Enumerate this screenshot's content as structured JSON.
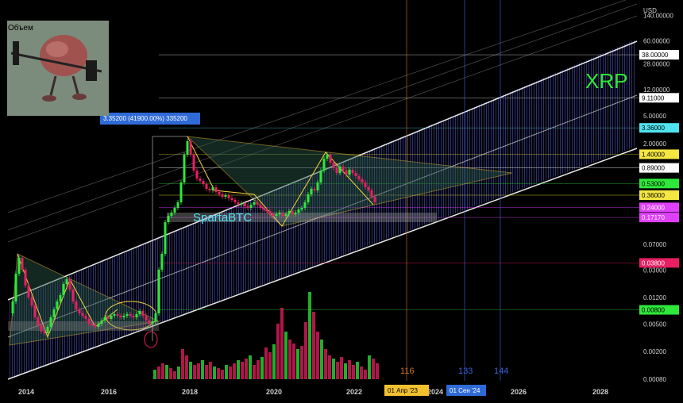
{
  "chart_data": {
    "type": "candlestick",
    "symbol_label": "XRP",
    "volume_label": "Объем",
    "watermark": "SpartaBTC",
    "y_unit": "USD",
    "y_scale": "log",
    "ylim": [
      0.0008,
      200
    ],
    "x_years": [
      "2014",
      "2016",
      "2018",
      "2020",
      "2022",
      "2024",
      "2026",
      "2028"
    ],
    "price_scale_labels": [
      "140.00000",
      "60.00000",
      "28.00000",
      "12.00000",
      "5.00000",
      "2.00000",
      "0.07000",
      "0.03000",
      "0.01200",
      "0.00500",
      "0.00200",
      "0.00080"
    ],
    "price_tags": [
      {
        "value": "38.00000",
        "bg": "#ffffff",
        "fg": "#000000"
      },
      {
        "value": "9.11000",
        "bg": "#ffffff",
        "fg": "#000000"
      },
      {
        "value": "3.36000",
        "bg": "#4fe3ef",
        "fg": "#000000"
      },
      {
        "value": "1.40000",
        "bg": "#f5e642",
        "fg": "#000000"
      },
      {
        "value": "0.89000",
        "bg": "#ffffff",
        "fg": "#000000"
      },
      {
        "value": "0.53000",
        "bg": "#2ee83a",
        "fg": "#000000"
      },
      {
        "value": "0.36000",
        "bg": "#f5e642",
        "fg": "#000000"
      },
      {
        "value": "0.24000",
        "bg": "#e040fb",
        "fg": "#ffffff"
      },
      {
        "value": "0.17170",
        "bg": "#e040fb",
        "fg": "#ffffff"
      },
      {
        "value": "0.03800",
        "bg": "#e91e63",
        "fg": "#ffffff"
      },
      {
        "value": "0.00800",
        "bg": "#2ee83a",
        "fg": "#000000"
      }
    ],
    "measure_label": "3.35200 (41900.00%) 335200",
    "fib_time_labels": [
      "116",
      "133",
      "144"
    ],
    "date_tags": [
      {
        "value": "01 Апр '23",
        "bg": "#f2c12e"
      },
      {
        "value": "01 Сен '24",
        "bg": "#2f6bd8"
      }
    ]
  },
  "colors": {
    "up": "#2ee83a",
    "down": "#e91e63",
    "channel": "#ffffff",
    "triangle": "#f5d142",
    "fill": "#3a3f8f",
    "fib_orange": "#c8742a",
    "fib_blue": "#3a63d8"
  },
  "image": {
    "description_icon": "brain-lifting-barbell-icon"
  }
}
